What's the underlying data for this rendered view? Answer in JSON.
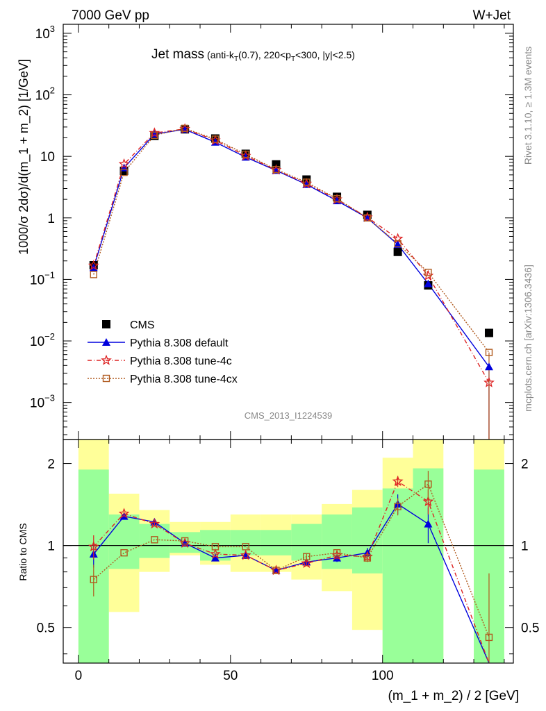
{
  "header": {
    "left": "7000 GeV pp",
    "right": "W+Jet"
  },
  "title": {
    "main": "Jet mass",
    "sub_1": "(anti-k",
    "sub_1_sub": "T",
    "sub_2": "(0.7), 220<p",
    "sub_2_sub": "T",
    "sub_3": "<300, |y|<2.5)"
  },
  "side_labels": {
    "rivet": "Rivet 3.1.10, ≥ 1.3M events",
    "mcplots": "mcplots.cern.ch [arXiv:1306.3436]"
  },
  "watermark": "CMS_2013_I1224539",
  "chart_data": [
    {
      "type": "line",
      "panel": "main",
      "xlabel": "(m_1 + m_2) / 2 [GeV]",
      "ylabel": "1000/σ 2dσ)/d(m_1 + m_2) [1/GeV]",
      "log_y": true,
      "xlim": [
        -5,
        143
      ],
      "ylim": [
        0.00025,
        1400
      ],
      "y_ticks": [
        {
          "v": 1000,
          "base": "10",
          "exp": "3"
        },
        {
          "v": 100,
          "base": "10",
          "exp": "2"
        },
        {
          "v": 10,
          "base": "10",
          "exp": ""
        },
        {
          "v": 1,
          "base": "1",
          "exp": ""
        },
        {
          "v": 0.1,
          "base": "10",
          "exp": "−1"
        },
        {
          "v": 0.01,
          "base": "10",
          "exp": "−2"
        },
        {
          "v": 0.001,
          "base": "10",
          "exp": "−3"
        }
      ],
      "legend": {
        "placement": "lower-left"
      },
      "series": [
        {
          "name": "CMS",
          "marker": "square-filled",
          "color": "#000000",
          "x": [
            5,
            15,
            25,
            35,
            45,
            55,
            65,
            75,
            85,
            95,
            105,
            115,
            135
          ],
          "y": [
            0.17,
            5.8,
            21.5,
            27.5,
            19.5,
            11.0,
            7.4,
            4.2,
            2.2,
            1.12,
            0.28,
            0.08,
            0.0135
          ]
        },
        {
          "name": "Pythia 8.308 default",
          "marker": "triangle-filled",
          "color": "#0000dd",
          "dash": "",
          "x": [
            5,
            15,
            25,
            35,
            45,
            55,
            65,
            75,
            85,
            95,
            105,
            115,
            135
          ],
          "y": [
            0.155,
            6.5,
            23.0,
            27.5,
            17.0,
            9.7,
            5.9,
            3.5,
            1.9,
            1.0,
            0.37,
            0.085,
            0.0038
          ]
        },
        {
          "name": "Pythia 8.308 tune-4c",
          "marker": "star-open",
          "color": "#dd2222",
          "dash": "6,3,1,3",
          "x": [
            5,
            15,
            25,
            35,
            45,
            55,
            65,
            75,
            85,
            95,
            105,
            115,
            135
          ],
          "y": [
            0.168,
            7.5,
            24.0,
            28.0,
            18.2,
            10.2,
            6.0,
            3.6,
            2.0,
            1.02,
            0.46,
            0.115,
            0.0021
          ]
        },
        {
          "name": "Pythia 8.308 tune-4cx",
          "marker": "square-open",
          "color": "#b05a1e",
          "dash": "2,2",
          "x": [
            5,
            15,
            25,
            35,
            45,
            55,
            65,
            75,
            85,
            95,
            105,
            115,
            135
          ],
          "y": [
            0.12,
            5.5,
            22.0,
            28.5,
            19.0,
            10.8,
            6.1,
            3.8,
            2.05,
            1.0,
            0.38,
            0.13,
            0.0065
          ]
        }
      ]
    },
    {
      "type": "line",
      "panel": "ratio",
      "xlabel": "(m_1 + m_2) / 2 [GeV]",
      "ylabel": "Ratio to CMS",
      "log_y": true,
      "xlim": [
        -5,
        143
      ],
      "ylim": [
        0.37,
        2.45
      ],
      "y_ticks": [
        0.5,
        1,
        2
      ],
      "x_ticks": [
        0,
        50,
        100
      ],
      "bands": {
        "bin_edges": [
          0,
          10,
          20,
          30,
          40,
          50,
          60,
          70,
          80,
          90,
          100,
          110,
          120,
          130,
          140
        ],
        "yellow": [
          [
            0.1,
            5.0
          ],
          [
            0.57,
            1.55
          ],
          [
            0.8,
            1.35
          ],
          [
            0.92,
            1.22
          ],
          [
            0.85,
            1.22
          ],
          [
            0.8,
            1.3
          ],
          [
            0.8,
            1.3
          ],
          [
            0.75,
            1.3
          ],
          [
            0.68,
            1.42
          ],
          [
            0.49,
            1.6
          ],
          [
            0.1,
            2.1
          ],
          [
            0.1,
            5.0
          ],
          null,
          [
            0.1,
            5.0
          ]
        ],
        "green": [
          [
            0.1,
            1.9
          ],
          [
            0.82,
            1.3
          ],
          [
            0.9,
            1.2
          ],
          [
            0.94,
            1.12
          ],
          [
            0.88,
            1.14
          ],
          [
            0.92,
            1.14
          ],
          [
            0.92,
            1.14
          ],
          [
            0.88,
            1.2
          ],
          [
            0.82,
            1.3
          ],
          [
            0.79,
            1.38
          ],
          [
            0.1,
            1.62
          ],
          [
            0.1,
            1.92
          ],
          null,
          [
            0.1,
            1.9
          ]
        ]
      },
      "series": [
        {
          "name": "Pythia 8.308 default",
          "marker": "triangle-filled",
          "color": "#0000dd",
          "dash": "",
          "x": [
            5,
            15,
            25,
            35,
            45,
            55,
            65,
            75,
            85,
            95,
            105,
            115,
            135
          ],
          "y": [
            0.93,
            1.28,
            1.22,
            1.02,
            0.9,
            0.92,
            0.81,
            0.87,
            0.9,
            0.94,
            1.42,
            1.2,
            0.3
          ],
          "err": [
            0.1,
            0,
            0,
            0,
            0,
            0,
            0,
            0.02,
            0.03,
            0.04,
            0.12,
            0.18,
            0
          ]
        },
        {
          "name": "Pythia 8.308 tune-4c",
          "marker": "star-open",
          "color": "#dd2222",
          "dash": "6,3,1,3",
          "x": [
            5,
            15,
            25,
            35,
            45,
            55,
            65,
            75,
            85,
            95,
            105,
            115,
            135
          ],
          "y": [
            0.99,
            1.31,
            1.2,
            1.02,
            0.93,
            0.92,
            0.81,
            0.86,
            0.92,
            0.91,
            1.72,
            1.45,
            0.15
          ],
          "err": [
            0.1,
            0.02,
            0.02,
            0,
            0,
            0,
            0,
            0.02,
            0.03,
            0.03,
            0.08,
            0.15,
            0
          ]
        },
        {
          "name": "Pythia 8.308 tune-4cx",
          "marker": "square-open",
          "color": "#b05a1e",
          "dash": "2,2",
          "x": [
            5,
            15,
            25,
            35,
            45,
            55,
            65,
            75,
            85,
            95,
            105,
            115,
            135
          ],
          "y": [
            0.75,
            0.94,
            1.05,
            1.04,
            0.99,
            0.99,
            0.81,
            0.91,
            0.94,
            0.9,
            1.39,
            1.68,
            0.46
          ],
          "err": [
            0.1,
            0,
            0,
            0,
            0,
            0,
            0,
            0.02,
            0.02,
            0.03,
            0.1,
            0.2,
            0.33
          ]
        }
      ]
    }
  ]
}
